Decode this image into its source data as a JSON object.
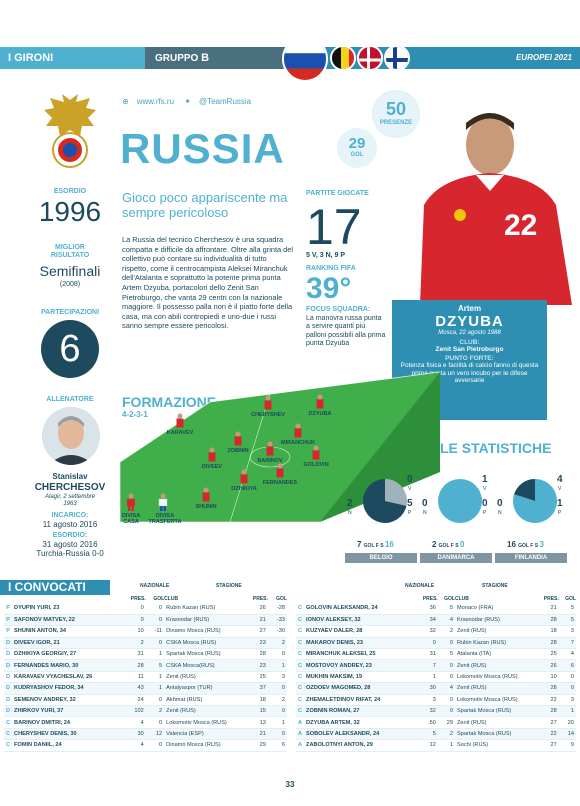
{
  "header": {
    "section": "I GIRONI",
    "group_prefix": "GRUPPO",
    "group_letter": "B",
    "event": "EUROPEI 2021"
  },
  "team": {
    "website": "www.rfs.ru",
    "twitter": "@TeamRussia",
    "name": "RUSSIA",
    "presenze": "50",
    "presenze_label": "PRESENZE",
    "gol": "29",
    "gol_label": "GOL",
    "subtitle": "Gioco poco appariscente ma sempre pericoloso",
    "description": "La Russia del tecnico Cherchesov è una squadra compatta e difficile da affrontare. Oltre alla grinta del collettivo può contare su individualità di tutto rispetto, come il centrocampista Aleksei Miranchuk dell'Atalanta e soprattutto la potente prima punta Artem Dzyuba, portacolori dello Zenit San Pietroburgo, che vanta 29 centri con la nazionale maggiore. Il possesso palla non è il piatto forte della casa, ma con abili contropiedi e uno-due i russi sanno sempre essere pericolosi."
  },
  "left_stats": {
    "esordio_label": "ESORDIO",
    "esordio_year": "1996",
    "best_label": "MIGLIOR RISULTATO",
    "best_value": "Semifinali",
    "best_year": "(2008)",
    "partecipazioni_label": "PARTECIPAZIONI",
    "partecipazioni": "6",
    "coach_label": "ALLENATORE",
    "coach_first": "Stanislav",
    "coach_last": "CHERCHESOV",
    "coach_birth": "Alagir, 2 settembre 1963",
    "incarico_label": "INCARICO:",
    "incarico": "11 agosto 2016",
    "esordio2_label": "ESORDIO:",
    "esordio2_date": "31 agosto 2016",
    "esordio2_match": "Turchia-Russia 0-0"
  },
  "mid_stats": {
    "partite_label": "PARTITE GIOCATE",
    "partite": "17",
    "partite_detail": "5 V, 3 N, 9 P",
    "fifa_label": "RANKING FIFA",
    "fifa": "39°",
    "focus_label": "FOCUS SQUADRA:",
    "focus_text": "La manovra russa punta a servire quanti più palloni possibili alla prima punta Dzyuba"
  },
  "player": {
    "first": "Artem",
    "last": "DZYUBA",
    "birth": "Mosca, 22 agosto 1988",
    "club_label": "CLUB:",
    "club": "Zenit San Pietroburgo",
    "strength_label": "PUNTO FORTE:",
    "strength": "Potenza fisica e facilità di calcio fanno di questa prima punta un vero incubo per le difese avversarie"
  },
  "formation": {
    "title": "FORMAZIONE",
    "scheme": "4-2-3-1",
    "players": [
      "CHERYSHEV",
      "DZYUBA",
      "MIRANCHUK",
      "KARAVEV",
      "ZOBNIN",
      "BARINOV",
      "GOLOVIN",
      "DIVEEV",
      "DZHIKIYA",
      "SHUNIN",
      "FERNANDES"
    ],
    "home_kit": "DIVISA CASA",
    "away_kit": "DIVISA TRASFERTA"
  },
  "stats": {
    "title": "LE STATISTICHE",
    "opponents": [
      {
        "name": "BELGIO",
        "v": "0",
        "n": "2",
        "p": "5",
        "gf": "7",
        "gs": "16"
      },
      {
        "name": "DANIMARCA",
        "v": "1",
        "n": "0",
        "p": "0",
        "gf": "2",
        "gs": "0"
      },
      {
        "name": "FINLANDIA",
        "v": "4",
        "n": "0",
        "p": "1",
        "gf": "16",
        "gs": "3"
      }
    ],
    "letters": {
      "v": "V",
      "n": "N",
      "p": "P"
    },
    "gol_label": "GOL",
    "f_label": "F",
    "s_label": "S"
  },
  "convocati": {
    "title": "I CONVOCATI",
    "col_nazionale": "NAZIONALE",
    "col_stagione": "STAGIONE",
    "col_pres": "PRES.",
    "col_gol": "GOL",
    "col_club": "CLUB",
    "left": [
      [
        "P",
        "DYUPIN YURI, 23",
        "0",
        "0",
        "Rubin Kazan (RUS)",
        "26",
        "-28"
      ],
      [
        "P",
        "SAFONOV MATVEY, 22",
        "0",
        "0",
        "Krasnodar (RUS)",
        "21",
        "-33"
      ],
      [
        "P",
        "SHUNIN ANTON, 34",
        "10",
        "-11",
        "Dinamo Mosca (RUS)",
        "27",
        "-30"
      ],
      [
        "D",
        "DIVEEV IGOR, 21",
        "2",
        "0",
        "CSKA Mosca (RUS)",
        "23",
        "2"
      ],
      [
        "D",
        "DZHIKIYA GEORGIY, 27",
        "31",
        "1",
        "Spartak Mosca (RUS)",
        "28",
        "0"
      ],
      [
        "D",
        "FERNANDES MARIO, 30",
        "28",
        "5",
        "CSKA Mosca(RUS)",
        "23",
        "1"
      ],
      [
        "D",
        "KARAVAEV VYACHESLAV, 26",
        "11",
        "1",
        "Zenit (RUS)",
        "25",
        "3"
      ],
      [
        "D",
        "KUDRYASHOV FEDOR, 34",
        "43",
        "1",
        "Antalyaspor (TUR)",
        "37",
        "0"
      ],
      [
        "D",
        "SEMENOV ANDREY, 32",
        "24",
        "0",
        "Akhmat (RUS)",
        "18",
        "2"
      ],
      [
        "D",
        "ZHIRKOV YURI, 37",
        "102",
        "2",
        "Zenit (RUS)",
        "15",
        "0"
      ],
      [
        "C",
        "BARINOV DMITRI, 24",
        "4",
        "0",
        "Lokomotiv Mosca (RUS)",
        "13",
        "1"
      ],
      [
        "C",
        "CHERYSHEV DENIS, 30",
        "30",
        "12",
        "Valencia (ESP)",
        "21",
        "0"
      ],
      [
        "C",
        "FOMIN DANIIL, 24",
        "4",
        "0",
        "Dinamo Mosca (RUS)",
        "29",
        "6"
      ]
    ],
    "right": [
      [
        "C",
        "GOLOVIN ALEKSANDR, 24",
        "36",
        "5",
        "Monaco (FRA)",
        "21",
        "5"
      ],
      [
        "C",
        "IONOV ALEKSEY, 32",
        "34",
        "4",
        "Krasnodar (RUS)",
        "28",
        "5"
      ],
      [
        "C",
        "KUZYAEV DALER, 28",
        "32",
        "2",
        "Zenit (RUS)",
        "18",
        "3"
      ],
      [
        "C",
        "MAKAROV DENIS, 23",
        "0",
        "0",
        "Rubin Kazan (RUS)",
        "28",
        "7"
      ],
      [
        "C",
        "MIRANCHUK ALEKSEI, 25",
        "31",
        "5",
        "Atalanta (ITA)",
        "25",
        "4"
      ],
      [
        "C",
        "MOSTOVOY ANDREY, 23",
        "7",
        "0",
        "Zenit (RUS)",
        "26",
        "6"
      ],
      [
        "C",
        "MUKHIN MAKSIM, 19",
        "1",
        "0",
        "Lokomotiv Mosca (RUS)",
        "10",
        "0"
      ],
      [
        "C",
        "OZDOEV MAGOMED, 28",
        "30",
        "4",
        "Zenit (RUS)",
        "28",
        "0"
      ],
      [
        "C",
        "ZHEMALETDINOV RIFAT, 24",
        "3",
        "0",
        "Lokomotiv Mosca (RUS)",
        "22",
        "3"
      ],
      [
        "C",
        "ZOBNIN ROMAN, 27",
        "32",
        "0",
        "Spartak Mosca (RUS)",
        "28",
        "1"
      ],
      [
        "A",
        "DZYUBA ARTEM, 32",
        "50",
        "29",
        "Zenit (RUS)",
        "27",
        "20"
      ],
      [
        "A",
        "SOBOLEV ALEKSANDR, 24",
        "5",
        "2",
        "Spartak Mosca (RUS)",
        "22",
        "14"
      ],
      [
        "A",
        "ZABOLOTNYI ANTON, 29",
        "12",
        "1",
        "Sochi (RUS)",
        "27",
        "9"
      ]
    ]
  },
  "page_number": "33"
}
